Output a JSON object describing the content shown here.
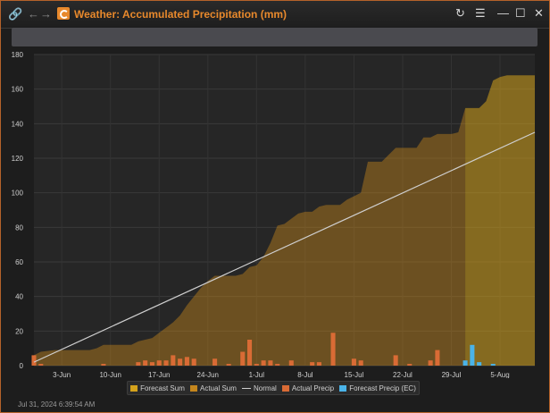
{
  "window": {
    "title": "Weather: Accumulated Precipitation (mm)",
    "icons": [
      "link-icon",
      "back-arrow-icon",
      "forward-arrow-icon",
      "app-logo-icon",
      "refresh-icon",
      "menu-icon",
      "minimize-icon",
      "maximize-icon",
      "close-icon"
    ]
  },
  "legend": {
    "items": [
      {
        "label": "Forecast Sum",
        "color": "#d4a21c"
      },
      {
        "label": "Actual Sum",
        "color": "#c4861d"
      },
      {
        "label": "Normal",
        "color": "#cfcfcf"
      },
      {
        "label": "Actual Precip",
        "color": "#d96b35"
      },
      {
        "label": "Forecast Precip (EC)",
        "color": "#4ab3e8"
      }
    ]
  },
  "footer": {
    "timestamp": "Jul 31, 2024 6:39:54 AM"
  },
  "chart_data": {
    "type": "area",
    "x_start": "2024-05-30",
    "x_end": "2024-08-10",
    "x_tick_labels": [
      "3-Jun",
      "10-Jun",
      "17-Jun",
      "24-Jun",
      "1-Jul",
      "8-Jul",
      "15-Jul",
      "22-Jul",
      "29-Jul",
      "5-Aug"
    ],
    "y_ticks": [
      0,
      20,
      40,
      60,
      80,
      100,
      120,
      140,
      160,
      180
    ],
    "ylim": [
      0,
      180
    ],
    "grid": true,
    "legend_position": "bottom",
    "colors": {
      "forecast_sum": "#d4a21c",
      "actual_sum": "#c4861d",
      "normal": "#cfcfcf",
      "actual_precip": "#d96b35",
      "forecast_precip": "#4ab3e8"
    },
    "series": [
      {
        "name": "Actual Sum",
        "points": [
          [
            "2024-05-30",
            6
          ],
          [
            "2024-05-31",
            8
          ],
          [
            "2024-06-02",
            9
          ],
          [
            "2024-06-07",
            9
          ],
          [
            "2024-06-08",
            10
          ],
          [
            "2024-06-09",
            12
          ],
          [
            "2024-06-13",
            12
          ],
          [
            "2024-06-14",
            14
          ],
          [
            "2024-06-15",
            15
          ],
          [
            "2024-06-16",
            16
          ],
          [
            "2024-06-17",
            19
          ],
          [
            "2024-06-18",
            22
          ],
          [
            "2024-06-19",
            25
          ],
          [
            "2024-06-20",
            29
          ],
          [
            "2024-06-21",
            35
          ],
          [
            "2024-06-22",
            40
          ],
          [
            "2024-06-23",
            45
          ],
          [
            "2024-06-24",
            49
          ],
          [
            "2024-06-25",
            52
          ],
          [
            "2024-06-26",
            52
          ],
          [
            "2024-06-27",
            52
          ],
          [
            "2024-06-28",
            52
          ],
          [
            "2024-06-29",
            53
          ],
          [
            "2024-06-30",
            57
          ],
          [
            "2024-07-01",
            58
          ],
          [
            "2024-07-02",
            63
          ],
          [
            "2024-07-03",
            71
          ],
          [
            "2024-07-04",
            81
          ],
          [
            "2024-07-05",
            82
          ],
          [
            "2024-07-06",
            85
          ],
          [
            "2024-07-07",
            88
          ],
          [
            "2024-07-08",
            89
          ],
          [
            "2024-07-09",
            89
          ],
          [
            "2024-07-10",
            92
          ],
          [
            "2024-07-11",
            93
          ],
          [
            "2024-07-12",
            93
          ],
          [
            "2024-07-13",
            93
          ],
          [
            "2024-07-14",
            96
          ],
          [
            "2024-07-15",
            98
          ],
          [
            "2024-07-16",
            100
          ],
          [
            "2024-07-17",
            118
          ],
          [
            "2024-07-18",
            118
          ],
          [
            "2024-07-19",
            118
          ],
          [
            "2024-07-20",
            122
          ],
          [
            "2024-07-21",
            126
          ],
          [
            "2024-07-22",
            126
          ],
          [
            "2024-07-23",
            126
          ],
          [
            "2024-07-24",
            126
          ],
          [
            "2024-07-25",
            132
          ],
          [
            "2024-07-26",
            132
          ],
          [
            "2024-07-27",
            134
          ],
          [
            "2024-07-28",
            134
          ],
          [
            "2024-07-29",
            134
          ],
          [
            "2024-07-30",
            135
          ],
          [
            "2024-07-31",
            149
          ]
        ]
      },
      {
        "name": "Forecast Sum",
        "points": [
          [
            "2024-07-31",
            149
          ],
          [
            "2024-08-01",
            149
          ],
          [
            "2024-08-02",
            149
          ],
          [
            "2024-08-03",
            153
          ],
          [
            "2024-08-04",
            165
          ],
          [
            "2024-08-05",
            167
          ],
          [
            "2024-08-06",
            168
          ],
          [
            "2024-08-07",
            168
          ],
          [
            "2024-08-08",
            168
          ],
          [
            "2024-08-09",
            168
          ],
          [
            "2024-08-10",
            168
          ]
        ]
      },
      {
        "name": "Normal",
        "points": [
          [
            "2024-05-30",
            2
          ],
          [
            "2024-08-10",
            135
          ]
        ]
      },
      {
        "name": "Actual Precip",
        "points": [
          [
            "2024-05-30",
            6
          ],
          [
            "2024-05-31",
            1
          ],
          [
            "2024-06-09",
            1
          ],
          [
            "2024-06-14",
            2
          ],
          [
            "2024-06-15",
            3
          ],
          [
            "2024-06-16",
            2
          ],
          [
            "2024-06-17",
            3
          ],
          [
            "2024-06-18",
            3
          ],
          [
            "2024-06-19",
            6
          ],
          [
            "2024-06-20",
            4
          ],
          [
            "2024-06-21",
            5
          ],
          [
            "2024-06-22",
            4
          ],
          [
            "2024-06-25",
            4
          ],
          [
            "2024-06-27",
            1
          ],
          [
            "2024-06-29",
            8
          ],
          [
            "2024-06-30",
            15
          ],
          [
            "2024-07-01",
            1
          ],
          [
            "2024-07-02",
            3
          ],
          [
            "2024-07-03",
            3
          ],
          [
            "2024-07-04",
            1
          ],
          [
            "2024-07-06",
            3
          ],
          [
            "2024-07-09",
            2
          ],
          [
            "2024-07-10",
            2
          ],
          [
            "2024-07-12",
            19
          ],
          [
            "2024-07-15",
            4
          ],
          [
            "2024-07-16",
            3
          ],
          [
            "2024-07-21",
            6
          ],
          [
            "2024-07-23",
            1
          ],
          [
            "2024-07-26",
            3
          ],
          [
            "2024-07-27",
            9
          ]
        ]
      },
      {
        "name": "Forecast Precip (EC)",
        "points": [
          [
            "2024-07-31",
            3
          ],
          [
            "2024-08-01",
            12
          ],
          [
            "2024-08-02",
            2
          ],
          [
            "2024-08-04",
            1
          ]
        ]
      }
    ]
  }
}
